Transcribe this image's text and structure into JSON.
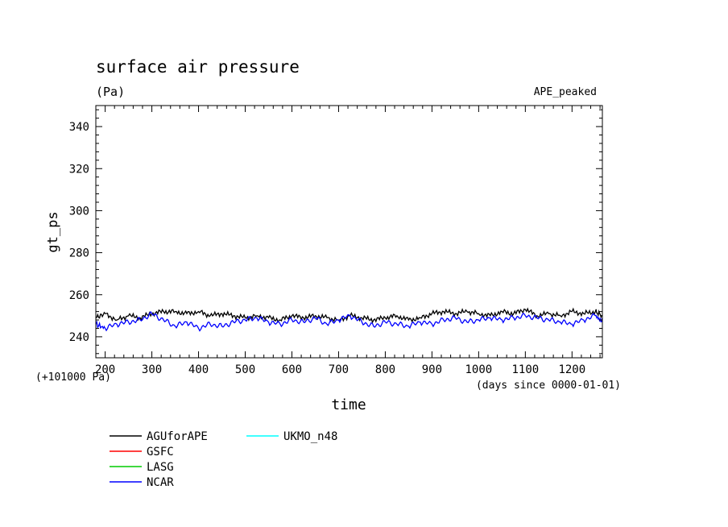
{
  "chart_data": {
    "type": "line",
    "title": "surface air pressure",
    "units": "(Pa)",
    "experiment": "APE_peaked",
    "xlabel": "time",
    "xunits": "(days since 0000-01-01)",
    "ylabel": "gt_ps",
    "yoffset_label": "(+101000 Pa)",
    "xlim": [
      180,
      1265
    ],
    "ylim": [
      230,
      350
    ],
    "xticks": [
      200,
      300,
      400,
      500,
      600,
      700,
      800,
      900,
      1000,
      1100,
      1200
    ],
    "yticks": [
      240,
      260,
      280,
      300,
      320,
      340
    ],
    "series": [
      {
        "name": "AGUforAPE",
        "color": "#000000",
        "x": [
          180,
          200,
          225,
          250,
          275,
          300,
          325,
          350,
          375,
          400,
          425,
          450,
          475,
          500,
          525,
          550,
          575,
          600,
          625,
          650,
          675,
          700,
          725,
          750,
          775,
          800,
          825,
          850,
          875,
          900,
          925,
          950,
          975,
          1000,
          1025,
          1050,
          1075,
          1100,
          1125,
          1150,
          1175,
          1200,
          1225,
          1250,
          1265
        ],
        "y": [
          249,
          251,
          248,
          250,
          249,
          251,
          252,
          252,
          251,
          252,
          250,
          251,
          250,
          249,
          250,
          249,
          248,
          250,
          249,
          250,
          249,
          248,
          250,
          249,
          248,
          249,
          250,
          248,
          249,
          251,
          252,
          251,
          252,
          251,
          250,
          252,
          251,
          253,
          250,
          251,
          250,
          252,
          251,
          252,
          250
        ]
      },
      {
        "name": "GSFC",
        "color": "#ff0000",
        "x": [],
        "y": []
      },
      {
        "name": "LASG",
        "color": "#00cc00",
        "x": [],
        "y": []
      },
      {
        "name": "NCAR",
        "color": "#0000ff",
        "x": [
          180,
          200,
          225,
          250,
          275,
          300,
          325,
          350,
          375,
          400,
          425,
          450,
          475,
          500,
          525,
          550,
          575,
          600,
          625,
          650,
          675,
          700,
          725,
          750,
          775,
          800,
          825,
          850,
          875,
          900,
          925,
          950,
          975,
          1000,
          1025,
          1050,
          1075,
          1100,
          1125,
          1150,
          1175,
          1200,
          1225,
          1250,
          1265
        ],
        "y": [
          246,
          244,
          246,
          247,
          248,
          251,
          248,
          245,
          247,
          244,
          246,
          245,
          247,
          248,
          249,
          247,
          246,
          248,
          247,
          249,
          246,
          248,
          250,
          247,
          245,
          247,
          246,
          245,
          247,
          246,
          248,
          249,
          247,
          248,
          249,
          248,
          249,
          250,
          249,
          248,
          247,
          246,
          248,
          250,
          247
        ]
      },
      {
        "name": "UKMO_n48",
        "color": "#00ffff",
        "x": [],
        "y": []
      }
    ]
  }
}
